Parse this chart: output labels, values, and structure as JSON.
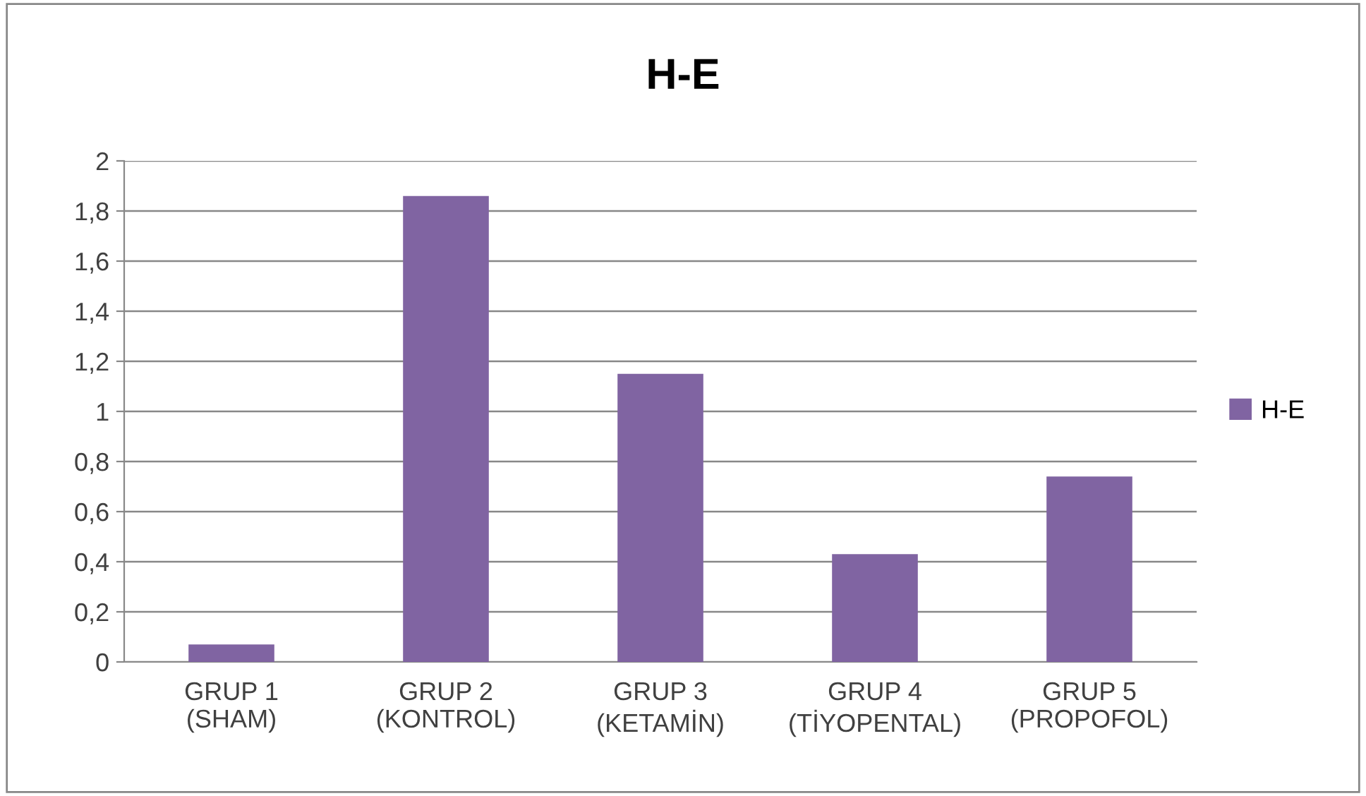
{
  "chart_data": {
    "type": "bar",
    "title": "H-E",
    "categories": [
      "GRUP 1\n(SHAM)",
      "GRUP 2\n(KONTROL)",
      "GRUP 3\n(KETAMİN)",
      "GRUP 4\n(TİYOPENTAL)",
      "GRUP 5\n(PROPOFOL)"
    ],
    "series": [
      {
        "name": "H-E",
        "color": "#8064a2",
        "values": [
          0.07,
          1.86,
          1.15,
          0.43,
          0.74
        ]
      }
    ],
    "ylim": [
      0,
      2
    ],
    "yticks": [
      0,
      {
        "value": 0.2,
        "label": "0,2"
      },
      {
        "value": 0.4,
        "label": "0,4"
      },
      {
        "value": 0.6,
        "label": "0,6"
      },
      {
        "value": 0.8,
        "label": "0,8"
      },
      1,
      {
        "value": 1.2,
        "label": "1,2"
      },
      {
        "value": 1.4,
        "label": "1,4"
      },
      {
        "value": 1.6,
        "label": "1,6"
      },
      {
        "value": 1.8,
        "label": "1,8"
      },
      2
    ],
    "grid": "y",
    "legend": "right"
  }
}
